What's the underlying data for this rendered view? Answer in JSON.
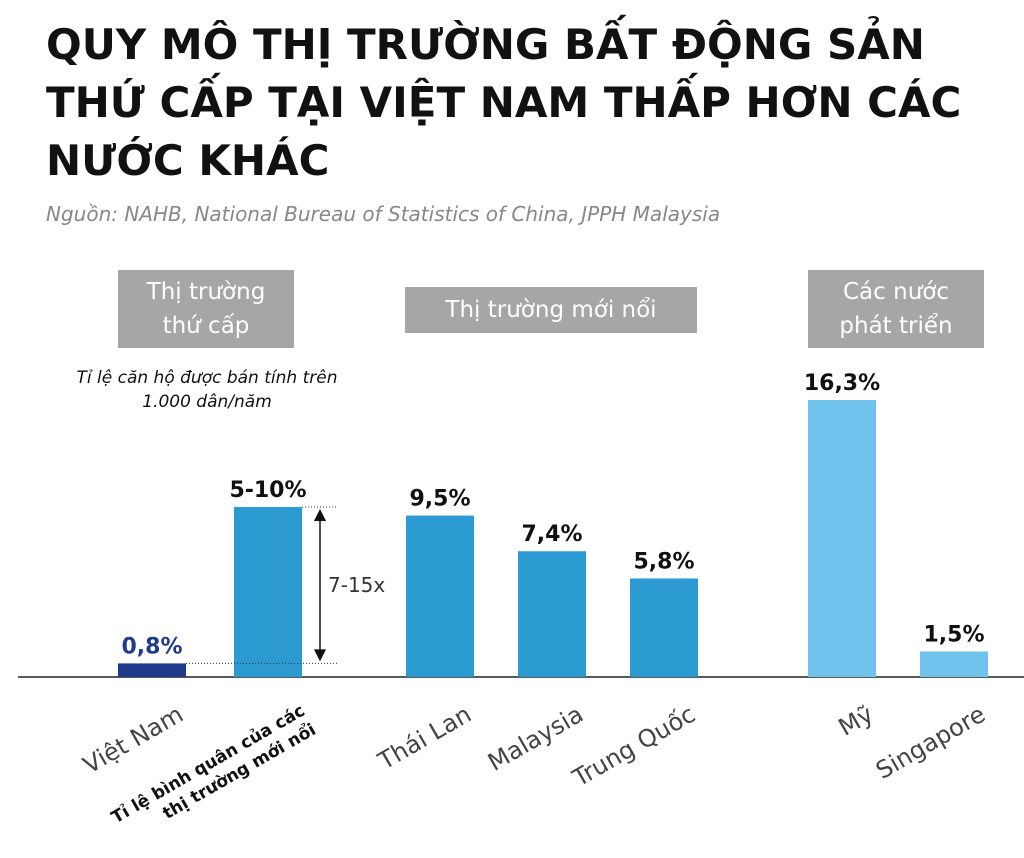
{
  "chart_data": {
    "type": "bar",
    "title": "QUY MÔ THỊ TRƯỜNG BẤT ĐỘNG SẢN THỨ CẤP TẠI VIỆT NAM THẤP HƠN CÁC NƯỚC KHÁC",
    "subtitle": "Nguồn: NAHB, National Bureau of Statistics of China, JPPH Malaysia",
    "note": "Tỉ lệ căn hộ được bán tính trên 1.000 dân/năm",
    "groups": [
      "Thị trường thứ cấp",
      "Thị trường mới nổi",
      "Các nước phát triển"
    ],
    "categories": [
      "Việt Nam",
      "Thái Lan",
      "Malaysia",
      "Trung Quốc",
      "Mỹ",
      "Singapore"
    ],
    "values": [
      0.8,
      9.5,
      7.4,
      5.8,
      16.3,
      1.5
    ],
    "value_labels": [
      "0,8%",
      "9,5%",
      "7,4%",
      "5,8%",
      "16,3%",
      "1,5%"
    ],
    "colors": [
      "#1f3c8c",
      "#2a9ad0",
      "#2a9ad0",
      "#2a9ad0",
      "#6fc3ec",
      "#6fc3ec"
    ],
    "average": {
      "label": "Tỉ lệ bình quân của các thị trường mới nổi",
      "low": 5,
      "high": 10,
      "value_label": "5-10%",
      "color": "#2a9ad0"
    },
    "multiple_label": "7-15x"
  }
}
